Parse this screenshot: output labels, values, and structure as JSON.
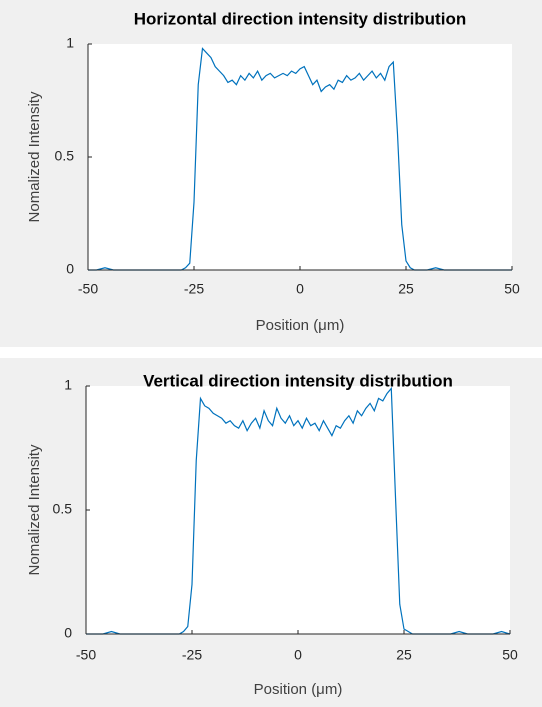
{
  "chart_data": [
    {
      "type": "line",
      "title": "Horizontal direction intensity distribution",
      "xlabel": "Position (μm)",
      "ylabel": "Nomalized Intensity",
      "xlim": [
        -50,
        50
      ],
      "ylim": [
        0,
        1
      ],
      "xticks": [
        -50,
        -25,
        0,
        25,
        50
      ],
      "yticks": [
        0,
        0.5,
        1
      ],
      "x": [
        -50,
        -48,
        -46,
        -44,
        -42,
        -40,
        -38,
        -36,
        -34,
        -32,
        -30,
        -28,
        -27,
        -26,
        -25,
        -24,
        -23,
        -22,
        -21,
        -20,
        -19,
        -18,
        -17,
        -16,
        -15,
        -14,
        -13,
        -12,
        -11,
        -10,
        -9,
        -8,
        -7,
        -6,
        -5,
        -4,
        -3,
        -2,
        -1,
        0,
        1,
        2,
        3,
        4,
        5,
        6,
        7,
        8,
        9,
        10,
        11,
        12,
        13,
        14,
        15,
        16,
        17,
        18,
        19,
        20,
        21,
        22,
        23,
        24,
        25,
        26,
        27,
        28,
        30,
        32,
        34,
        36,
        38,
        40,
        42,
        44,
        46,
        48,
        50
      ],
      "series": [
        {
          "color": "#0072bd",
          "values": [
            0,
            0,
            0.01,
            0,
            0,
            0,
            0,
            0,
            0,
            0,
            0,
            0,
            0.01,
            0.03,
            0.3,
            0.82,
            0.98,
            0.96,
            0.94,
            0.9,
            0.88,
            0.86,
            0.83,
            0.84,
            0.82,
            0.86,
            0.84,
            0.87,
            0.85,
            0.88,
            0.84,
            0.86,
            0.87,
            0.85,
            0.86,
            0.87,
            0.86,
            0.88,
            0.87,
            0.89,
            0.9,
            0.86,
            0.82,
            0.84,
            0.79,
            0.81,
            0.82,
            0.8,
            0.84,
            0.83,
            0.86,
            0.84,
            0.85,
            0.87,
            0.84,
            0.86,
            0.88,
            0.85,
            0.87,
            0.84,
            0.9,
            0.92,
            0.6,
            0.2,
            0.04,
            0.01,
            0,
            0,
            0,
            0.01,
            0,
            0,
            0,
            0,
            0,
            0,
            0,
            0,
            0
          ]
        }
      ]
    },
    {
      "type": "line",
      "title": "Vertical direction intensity distribution",
      "xlabel": "Position (μm)",
      "ylabel": "Nomalized Intensity",
      "xlim": [
        -50,
        50
      ],
      "ylim": [
        0,
        1
      ],
      "xticks": [
        -50,
        -25,
        0,
        25,
        50
      ],
      "yticks": [
        0,
        0.5,
        1
      ],
      "x": [
        -50,
        -48,
        -46,
        -44,
        -42,
        -40,
        -38,
        -36,
        -34,
        -32,
        -30,
        -28,
        -27,
        -26,
        -25,
        -24,
        -23,
        -22,
        -21,
        -20,
        -19,
        -18,
        -17,
        -16,
        -15,
        -14,
        -13,
        -12,
        -11,
        -10,
        -9,
        -8,
        -7,
        -6,
        -5,
        -4,
        -3,
        -2,
        -1,
        0,
        1,
        2,
        3,
        4,
        5,
        6,
        7,
        8,
        9,
        10,
        11,
        12,
        13,
        14,
        15,
        16,
        17,
        18,
        19,
        20,
        21,
        22,
        23,
        24,
        25,
        26,
        27,
        28,
        30,
        32,
        34,
        36,
        38,
        40,
        42,
        44,
        46,
        48,
        50
      ],
      "series": [
        {
          "color": "#0072bd",
          "values": [
            0,
            0,
            0,
            0.01,
            0,
            0,
            0,
            0,
            0,
            0,
            0,
            0,
            0.01,
            0.03,
            0.2,
            0.7,
            0.95,
            0.92,
            0.91,
            0.89,
            0.88,
            0.87,
            0.85,
            0.86,
            0.84,
            0.83,
            0.86,
            0.82,
            0.85,
            0.87,
            0.83,
            0.9,
            0.86,
            0.84,
            0.91,
            0.87,
            0.85,
            0.88,
            0.84,
            0.86,
            0.83,
            0.87,
            0.84,
            0.85,
            0.82,
            0.86,
            0.83,
            0.8,
            0.84,
            0.83,
            0.86,
            0.88,
            0.85,
            0.9,
            0.88,
            0.91,
            0.93,
            0.9,
            0.95,
            0.94,
            0.97,
            0.99,
            0.55,
            0.12,
            0.02,
            0.01,
            0,
            0,
            0,
            0,
            0,
            0,
            0.01,
            0,
            0,
            0,
            0,
            0.01,
            0
          ]
        }
      ]
    }
  ]
}
